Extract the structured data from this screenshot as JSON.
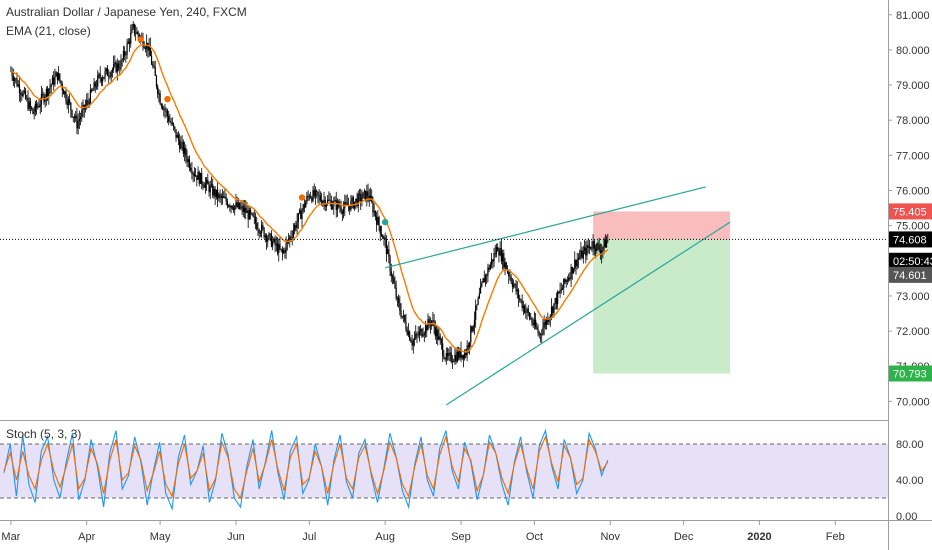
{
  "header": {
    "symbol_title": "Australian Dollar / Japanese Yen, 240, FXCM",
    "ema_label": "EMA (21, close)",
    "stoch_label": "Stoch (5, 3, 3)"
  },
  "colors": {
    "candle": "#000000",
    "ema": "#f57c00",
    "trendline": "#26a69a",
    "stop_zone": "#f7a1a1",
    "target_zone": "#a5dea6",
    "stoch_k": "#2196f3",
    "stoch_d": "#ef6c00",
    "stoch_band": "#e7e1f8",
    "current_price_tag": "#000000",
    "stop_tag": "#ef5350",
    "target_tag": "#2db34a"
  },
  "chart_data": [
    {
      "type": "candlestick",
      "series_name": "AUDJPY",
      "x_ticks": [
        "Mar",
        "Apr",
        "May",
        "Jun",
        "Jul",
        "Aug",
        "Sep",
        "Oct",
        "Nov",
        "Dec",
        "2020",
        "Feb"
      ],
      "y_ticks": [
        "70.000",
        "71.000",
        "72.000",
        "73.000",
        "74.000",
        "75.000",
        "76.000",
        "77.000",
        "78.000",
        "79.000",
        "80.000",
        "81.000"
      ],
      "ylim": [
        69.6,
        81.1
      ],
      "path_points": [
        {
          "x": "2019-03-01",
          "y": 79.4
        },
        {
          "x": "2019-03-10",
          "y": 78.2
        },
        {
          "x": "2019-03-20",
          "y": 79.3
        },
        {
          "x": "2019-03-28",
          "y": 77.9
        },
        {
          "x": "2019-04-06",
          "y": 79.2
        },
        {
          "x": "2019-04-15",
          "y": 79.6
        },
        {
          "x": "2019-04-20",
          "y": 80.6
        },
        {
          "x": "2019-04-26",
          "y": 80.1
        },
        {
          "x": "2019-05-01",
          "y": 78.6
        },
        {
          "x": "2019-05-08",
          "y": 77.5
        },
        {
          "x": "2019-05-15",
          "y": 76.5
        },
        {
          "x": "2019-05-25",
          "y": 75.8
        },
        {
          "x": "2019-06-05",
          "y": 75.4
        },
        {
          "x": "2019-06-15",
          "y": 74.6
        },
        {
          "x": "2019-06-20",
          "y": 74.2
        },
        {
          "x": "2019-07-01",
          "y": 75.9
        },
        {
          "x": "2019-07-15",
          "y": 75.5
        },
        {
          "x": "2019-07-25",
          "y": 75.9
        },
        {
          "x": "2019-08-01",
          "y": 74.5
        },
        {
          "x": "2019-08-06",
          "y": 72.8
        },
        {
          "x": "2019-08-12",
          "y": 71.7
        },
        {
          "x": "2019-08-20",
          "y": 72.3
        },
        {
          "x": "2019-08-26",
          "y": 71.2
        },
        {
          "x": "2019-09-03",
          "y": 71.4
        },
        {
          "x": "2019-09-10",
          "y": 73.4
        },
        {
          "x": "2019-09-16",
          "y": 74.4
        },
        {
          "x": "2019-09-25",
          "y": 72.9
        },
        {
          "x": "2019-10-03",
          "y": 71.9
        },
        {
          "x": "2019-10-10",
          "y": 72.9
        },
        {
          "x": "2019-10-18",
          "y": 74.0
        },
        {
          "x": "2019-10-25",
          "y": 74.5
        },
        {
          "x": "2019-10-28",
          "y": 74.3
        },
        {
          "x": "2019-10-31",
          "y": 74.6
        }
      ],
      "markers": [
        {
          "x": "2019-04-23",
          "y": 80.3,
          "color": "#ef6c00"
        },
        {
          "x": "2019-05-04",
          "y": 78.6,
          "color": "#ef6c00"
        },
        {
          "x": "2019-06-28",
          "y": 75.8,
          "color": "#ef6c00"
        },
        {
          "x": "2019-08-01",
          "y": 75.1,
          "color": "#26a69a"
        }
      ],
      "trendlines": [
        {
          "name": "upper-channel-line",
          "from": {
            "x": "2019-08-01",
            "y": 73.8
          },
          "to": {
            "x": "2019-12-10",
            "y": 76.1
          }
        },
        {
          "name": "lower-channel-line",
          "from": {
            "x": "2019-08-26",
            "y": 69.9
          },
          "to": {
            "x": "2019-12-20",
            "y": 75.1
          }
        }
      ],
      "horizontal_line": {
        "y": 74.608
      },
      "position": {
        "from_x": "2019-10-25",
        "to_x": "2019-12-20",
        "entry": 74.608,
        "stop": 75.405,
        "target": 70.793
      },
      "price_tags": [
        {
          "name": "stop-price-tag",
          "value": 75.405,
          "label": "75.405",
          "color": "#ef5350"
        },
        {
          "name": "current-price-tag",
          "value": 74.608,
          "label": "74.608",
          "color": "#000000"
        },
        {
          "name": "countdown-tag",
          "value": 74.0,
          "label": "02:50:43",
          "color": "#000000"
        },
        {
          "name": "last-price-tag",
          "value": 73.6,
          "label": "74.601",
          "color": "#555555"
        },
        {
          "name": "target-price-tag",
          "value": 70.793,
          "label": "70.793",
          "color": "#2db34a"
        }
      ]
    },
    {
      "type": "line",
      "name": "Stoch (5, 3, 3)",
      "y_ticks": [
        "0.00",
        "40.00",
        "80.00"
      ],
      "ylim": [
        0,
        100
      ],
      "band": [
        20,
        80
      ],
      "series": [
        {
          "name": "%K",
          "values": [
            48,
            80,
            22,
            90,
            35,
            15,
            72,
            88,
            40,
            20,
            60,
            92,
            18,
            40,
            85,
            55,
            10,
            70,
            95,
            30,
            45,
            88,
            60,
            12,
            50,
            82,
            25,
            8,
            65,
            90,
            35,
            50,
            78,
            15,
            40,
            92,
            68,
            20,
            10,
            55,
            85,
            30,
            60,
            95,
            48,
            18,
            72,
            88,
            25,
            40,
            80,
            55,
            12,
            62,
            90,
            38,
            20,
            70,
            85,
            45,
            15,
            52,
            92,
            66,
            28,
            10,
            58,
            88,
            40,
            22,
            75,
            95,
            50,
            30,
            82,
            60,
            18,
            45,
            90,
            70,
            35,
            12,
            60,
            88,
            48,
            20,
            78,
            95,
            55,
            30,
            85,
            65,
            25,
            40,
            92,
            75,
            45,
            62
          ]
        },
        {
          "name": "%D",
          "values": [
            50,
            70,
            40,
            72,
            45,
            30,
            62,
            80,
            50,
            32,
            55,
            80,
            30,
            42,
            75,
            58,
            25,
            62,
            85,
            40,
            48,
            78,
            62,
            28,
            48,
            72,
            35,
            22,
            58,
            80,
            42,
            50,
            70,
            28,
            42,
            82,
            65,
            30,
            20,
            50,
            75,
            38,
            58,
            85,
            52,
            28,
            65,
            80,
            35,
            42,
            72,
            55,
            25,
            58,
            80,
            42,
            30,
            65,
            78,
            48,
            25,
            50,
            82,
            65,
            35,
            22,
            55,
            80,
            45,
            30,
            68,
            88,
            55,
            38,
            75,
            62,
            28,
            45,
            82,
            70,
            42,
            25,
            58,
            80,
            52,
            30,
            72,
            88,
            58,
            38,
            78,
            65,
            35,
            42,
            85,
            72,
            50,
            60
          ]
        }
      ]
    }
  ]
}
